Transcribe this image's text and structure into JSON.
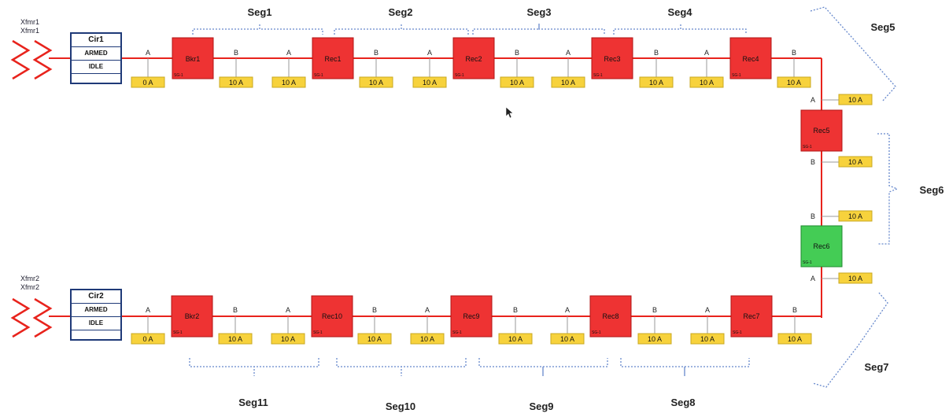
{
  "sources": [
    {
      "id": "xf1",
      "label1": "Xfmr1",
      "label2": "Xfmr1"
    },
    {
      "id": "xf2",
      "label1": "Xfmr2",
      "label2": "Xfmr2"
    }
  ],
  "circuits": [
    {
      "id": "cir1",
      "name": "Cir1",
      "state1": "ARMED",
      "state2": "IDLE",
      "state3": ""
    },
    {
      "id": "cir2",
      "name": "Cir2",
      "state1": "ARMED",
      "state2": "IDLE",
      "state3": ""
    }
  ],
  "devices": [
    {
      "id": "bkr1",
      "label": "Bkr1",
      "tag": "SG-1",
      "status": "closed"
    },
    {
      "id": "rec1",
      "label": "Rec1",
      "tag": "SG-1",
      "status": "closed"
    },
    {
      "id": "rec2",
      "label": "Rec2",
      "tag": "SG-1",
      "status": "closed"
    },
    {
      "id": "rec3",
      "label": "Rec3",
      "tag": "SG-1",
      "status": "closed"
    },
    {
      "id": "rec4",
      "label": "Rec4",
      "tag": "SG-1",
      "status": "closed"
    },
    {
      "id": "rec5",
      "label": "Rec5",
      "tag": "SG-1",
      "status": "closed"
    },
    {
      "id": "rec6",
      "label": "Rec6",
      "tag": "SG-1",
      "status": "open"
    },
    {
      "id": "rec7",
      "label": "Rec7",
      "tag": "SG-1",
      "status": "closed"
    },
    {
      "id": "rec8",
      "label": "Rec8",
      "tag": "SG-1",
      "status": "closed"
    },
    {
      "id": "rec9",
      "label": "Rec9",
      "tag": "SG-1",
      "status": "closed"
    },
    {
      "id": "rec10",
      "label": "Rec10",
      "tag": "SG-1",
      "status": "closed"
    },
    {
      "id": "bkr2",
      "label": "Bkr2",
      "tag": "SG-1",
      "status": "closed"
    }
  ],
  "meters": {
    "top": [
      {
        "side": "A",
        "reading": "0 A"
      },
      {
        "side": "B",
        "reading": "10 A"
      },
      {
        "side": "A",
        "reading": "10 A"
      },
      {
        "side": "B",
        "reading": "10 A"
      },
      {
        "side": "A",
        "reading": "10 A"
      },
      {
        "side": "B",
        "reading": "10 A"
      },
      {
        "side": "A",
        "reading": "10 A"
      },
      {
        "side": "B",
        "reading": "10 A"
      },
      {
        "side": "A",
        "reading": "10 A"
      },
      {
        "side": "B",
        "reading": "10 A"
      }
    ],
    "right": [
      {
        "side": "A",
        "reading": "10 A"
      },
      {
        "side": "B",
        "reading": "10 A"
      },
      {
        "side": "B",
        "reading": "10 A"
      },
      {
        "side": "A",
        "reading": "10 A"
      }
    ],
    "bottom": [
      {
        "side": "A",
        "reading": "0 A"
      },
      {
        "side": "B",
        "reading": "10 A"
      },
      {
        "side": "A",
        "reading": "10 A"
      },
      {
        "side": "B",
        "reading": "10 A"
      },
      {
        "side": "A",
        "reading": "10 A"
      },
      {
        "side": "B",
        "reading": "10 A"
      },
      {
        "side": "A",
        "reading": "10 A"
      },
      {
        "side": "B",
        "reading": "10 A"
      },
      {
        "side": "A",
        "reading": "10 A"
      },
      {
        "side": "B",
        "reading": "10 A"
      }
    ]
  },
  "segments": [
    "Seg1",
    "Seg2",
    "Seg3",
    "Seg4",
    "Seg5",
    "Seg6",
    "Seg7",
    "Seg8",
    "Seg9",
    "Seg10",
    "Seg11"
  ],
  "colors": {
    "line": "#e8231c",
    "device_closed": "#ee3333",
    "device_open": "#44cc55",
    "meter_fill": "#f7d23c",
    "meter_border": "#c8a820",
    "circuit_border": "#1f3a78",
    "segment_brace": "#6688cc"
  }
}
